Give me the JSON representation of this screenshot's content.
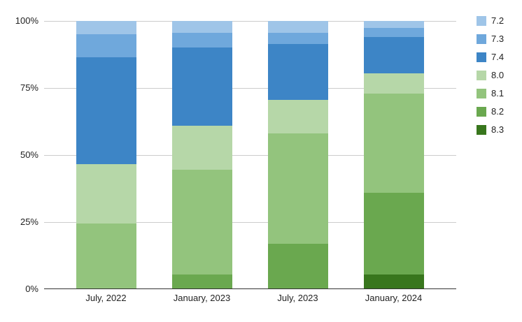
{
  "chart_data": {
    "type": "bar",
    "variant": "stacked-100-percent",
    "title": "",
    "xlabel": "",
    "ylabel": "",
    "ylim": [
      0,
      100
    ],
    "grid": true,
    "legend_position": "right",
    "axis_color": "#333333",
    "gridline_color": "#cccccc",
    "background_color": "#ffffff",
    "categories": [
      "July, 2022",
      "January, 2023",
      "July, 2023",
      "January, 2024"
    ],
    "y_ticks": [
      {
        "label": "100%",
        "value": 100
      },
      {
        "label": "75%",
        "value": 75
      },
      {
        "label": "50%",
        "value": 50
      },
      {
        "label": "25%",
        "value": 25
      },
      {
        "label": "0%",
        "value": 0
      }
    ],
    "series": [
      {
        "name": "7.2",
        "color": "#9fc5e8",
        "values": [
          5,
          4.5,
          4.5,
          2.5
        ]
      },
      {
        "name": "7.3",
        "color": "#6fa8dc",
        "values": [
          8.5,
          5.5,
          4,
          3.5
        ]
      },
      {
        "name": "7.4",
        "color": "#3d85c6",
        "values": [
          40,
          29,
          21,
          13.5
        ]
      },
      {
        "name": "8.0",
        "color": "#b6d7a8",
        "values": [
          22,
          16.5,
          12.5,
          7.5
        ]
      },
      {
        "name": "8.1",
        "color": "#93c47d",
        "values": [
          24.5,
          39,
          41,
          37
        ]
      },
      {
        "name": "8.2",
        "color": "#6aa84f",
        "values": [
          0,
          5.5,
          17,
          30.5
        ]
      },
      {
        "name": "8.3",
        "color": "#38761d",
        "values": [
          0,
          0,
          0,
          5.5
        ]
      }
    ]
  }
}
